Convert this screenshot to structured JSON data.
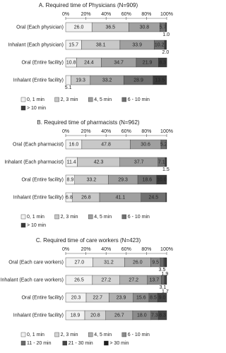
{
  "chart_data": [
    {
      "type": "bar",
      "orientation": "horizontal",
      "stacked": true,
      "title": "A. Required time of Physicians (N=909)",
      "categories": [
        "Oral (Each physician)",
        "Inhalant (Each physician)",
        "Oral (Entire facility)",
        "Inhalant (Entire facility)"
      ],
      "series": [
        {
          "name": "0, 1 min",
          "color": "#f2f2f2",
          "values": [
            26.0,
            15.7,
            10.8,
            5.1
          ],
          "value_labels": [
            "26.0",
            "15.7",
            "10.8",
            "5.1"
          ]
        },
        {
          "name": "2, 3 min",
          "color": "#c8c8c8",
          "values": [
            36.5,
            38.1,
            24.4,
            19.3
          ],
          "value_labels": [
            "36.5",
            "38.1",
            "24.4",
            "19.3"
          ]
        },
        {
          "name": "4, 5 min",
          "color": "#a0a0a0",
          "values": [
            30.8,
            33.9,
            34.7,
            33.2
          ],
          "value_labels": [
            "30.8",
            "33.9",
            "34.7",
            "33.2"
          ]
        },
        {
          "name": "6 - 10 min",
          "color": "#707070",
          "values": [
            5.7,
            10.2,
            21.9,
            28.9
          ],
          "value_labels": [
            "5.7",
            "10.2",
            "21.9",
            "28.9"
          ]
        },
        {
          "name": "> 10 min",
          "color": "#3a3a3a",
          "values": [
            1.0,
            2.0,
            8.3,
            13.5
          ],
          "value_labels": [
            "1.0",
            "2.0",
            "8.3",
            "13.5"
          ]
        }
      ],
      "xlim": [
        0,
        100
      ],
      "xticks": [
        {
          "value": 0,
          "label": "0%"
        },
        {
          "value": 20,
          "label": "20%"
        },
        {
          "value": 40,
          "label": "40%"
        },
        {
          "value": 60,
          "label": "60%"
        },
        {
          "value": 80,
          "label": "80%"
        },
        {
          "value": 100,
          "label": "100%"
        }
      ]
    },
    {
      "type": "bar",
      "orientation": "horizontal",
      "stacked": true,
      "title": "B. Required time of pharmacists (N=962)",
      "categories": [
        "Oral (Each pharmacist)",
        "Inhalant (Each pharmacist)",
        "Oral (Entire facility)",
        "Inhalant (Entire facility)"
      ],
      "series": [
        {
          "name": "0, 1 min",
          "color": "#f2f2f2",
          "values": [
            16.0,
            11.4,
            8.9,
            6.8
          ],
          "value_labels": [
            "16.0",
            "11.4",
            "8.9",
            "6.8"
          ]
        },
        {
          "name": "2, 3 min",
          "color": "#c8c8c8",
          "values": [
            47.8,
            42.3,
            33.2,
            26.8
          ],
          "value_labels": [
            "47.8",
            "42.3",
            "33.2",
            "26.8"
          ]
        },
        {
          "name": "4, 5 min",
          "color": "#a0a0a0",
          "values": [
            30.6,
            37.7,
            29.3,
            41.1
          ],
          "value_labels": [
            "30.6",
            "37.7",
            "29.3",
            "41.1"
          ]
        },
        {
          "name": "6 - 10 min",
          "color": "#707070",
          "values": [
            5.2,
            7.1,
            18.6,
            24.5
          ],
          "value_labels": [
            "5.2",
            "7.1",
            "18.6",
            "24.5"
          ]
        },
        {
          "name": "> 10 min",
          "color": "#3a3a3a",
          "values": [
            0.4,
            1.5,
            10.0,
            0.8
          ],
          "value_labels": [
            null,
            "1.5",
            "10.0",
            null
          ]
        }
      ],
      "xlim": [
        0,
        100
      ],
      "xticks": [
        {
          "value": 0,
          "label": "0%"
        },
        {
          "value": 20,
          "label": "20%"
        },
        {
          "value": 40,
          "label": "40%"
        },
        {
          "value": 60,
          "label": "60%"
        },
        {
          "value": 80,
          "label": "80%"
        },
        {
          "value": 100,
          "label": "100%"
        }
      ]
    },
    {
      "type": "bar",
      "orientation": "horizontal",
      "stacked": true,
      "title": "C. Required time of care workers (N=423)",
      "categories": [
        "Oral (Each care workers)",
        "Inhalant (Each care workers)",
        "Oral (Entire facility)",
        "Inhalant (Entire facility)"
      ],
      "series": [
        {
          "name": "0, 1 min",
          "color": "#f2f2f2",
          "values": [
            27.0,
            26.5,
            20.3,
            18.9
          ],
          "value_labels": [
            "27.0",
            "26.5",
            "20.3",
            "18.9"
          ]
        },
        {
          "name": "2, 3 min",
          "color": "#d4d4d4",
          "values": [
            31.2,
            27.2,
            22.7,
            20.8
          ],
          "value_labels": [
            "31.2",
            "27.2",
            "22.7",
            "20.8"
          ]
        },
        {
          "name": "4, 5 min",
          "color": "#b0b0b0",
          "values": [
            26.0,
            27.2,
            23.9,
            26.7
          ],
          "value_labels": [
            "26.0",
            "27.2",
            "23.9",
            "26.7"
          ]
        },
        {
          "name": "6 - 10 min",
          "color": "#8c8c8c",
          "values": [
            9.5,
            13.7,
            15.6,
            18.0
          ],
          "value_labels": [
            "9.5",
            "13.7",
            "15.6",
            "18.0"
          ]
        },
        {
          "name": "11 - 20 min",
          "color": "#6a6a6a",
          "values": [
            3.5,
            3.1,
            8.5,
            7.3
          ],
          "value_labels": [
            "3.5",
            "3.1",
            "8.5",
            "7.3"
          ]
        },
        {
          "name": "21 - 30 min",
          "color": "#454545",
          "values": [
            1.9,
            1.7,
            9.0,
            8.3
          ],
          "value_labels": [
            "1.9",
            "1.7",
            "9.0",
            "8.3"
          ]
        },
        {
          "name": "> 30 min",
          "color": "#1e1e1e",
          "values": [
            0.9,
            0.6,
            0,
            0
          ],
          "value_labels": [
            null,
            null,
            null,
            null
          ]
        }
      ],
      "xlim": [
        0,
        100
      ],
      "xticks": [
        {
          "value": 0,
          "label": "0%"
        },
        {
          "value": 20,
          "label": "20%"
        },
        {
          "value": 40,
          "label": "40%"
        },
        {
          "value": 60,
          "label": "60%"
        },
        {
          "value": 80,
          "label": "80%"
        },
        {
          "value": 100,
          "label": "100%"
        }
      ]
    }
  ]
}
